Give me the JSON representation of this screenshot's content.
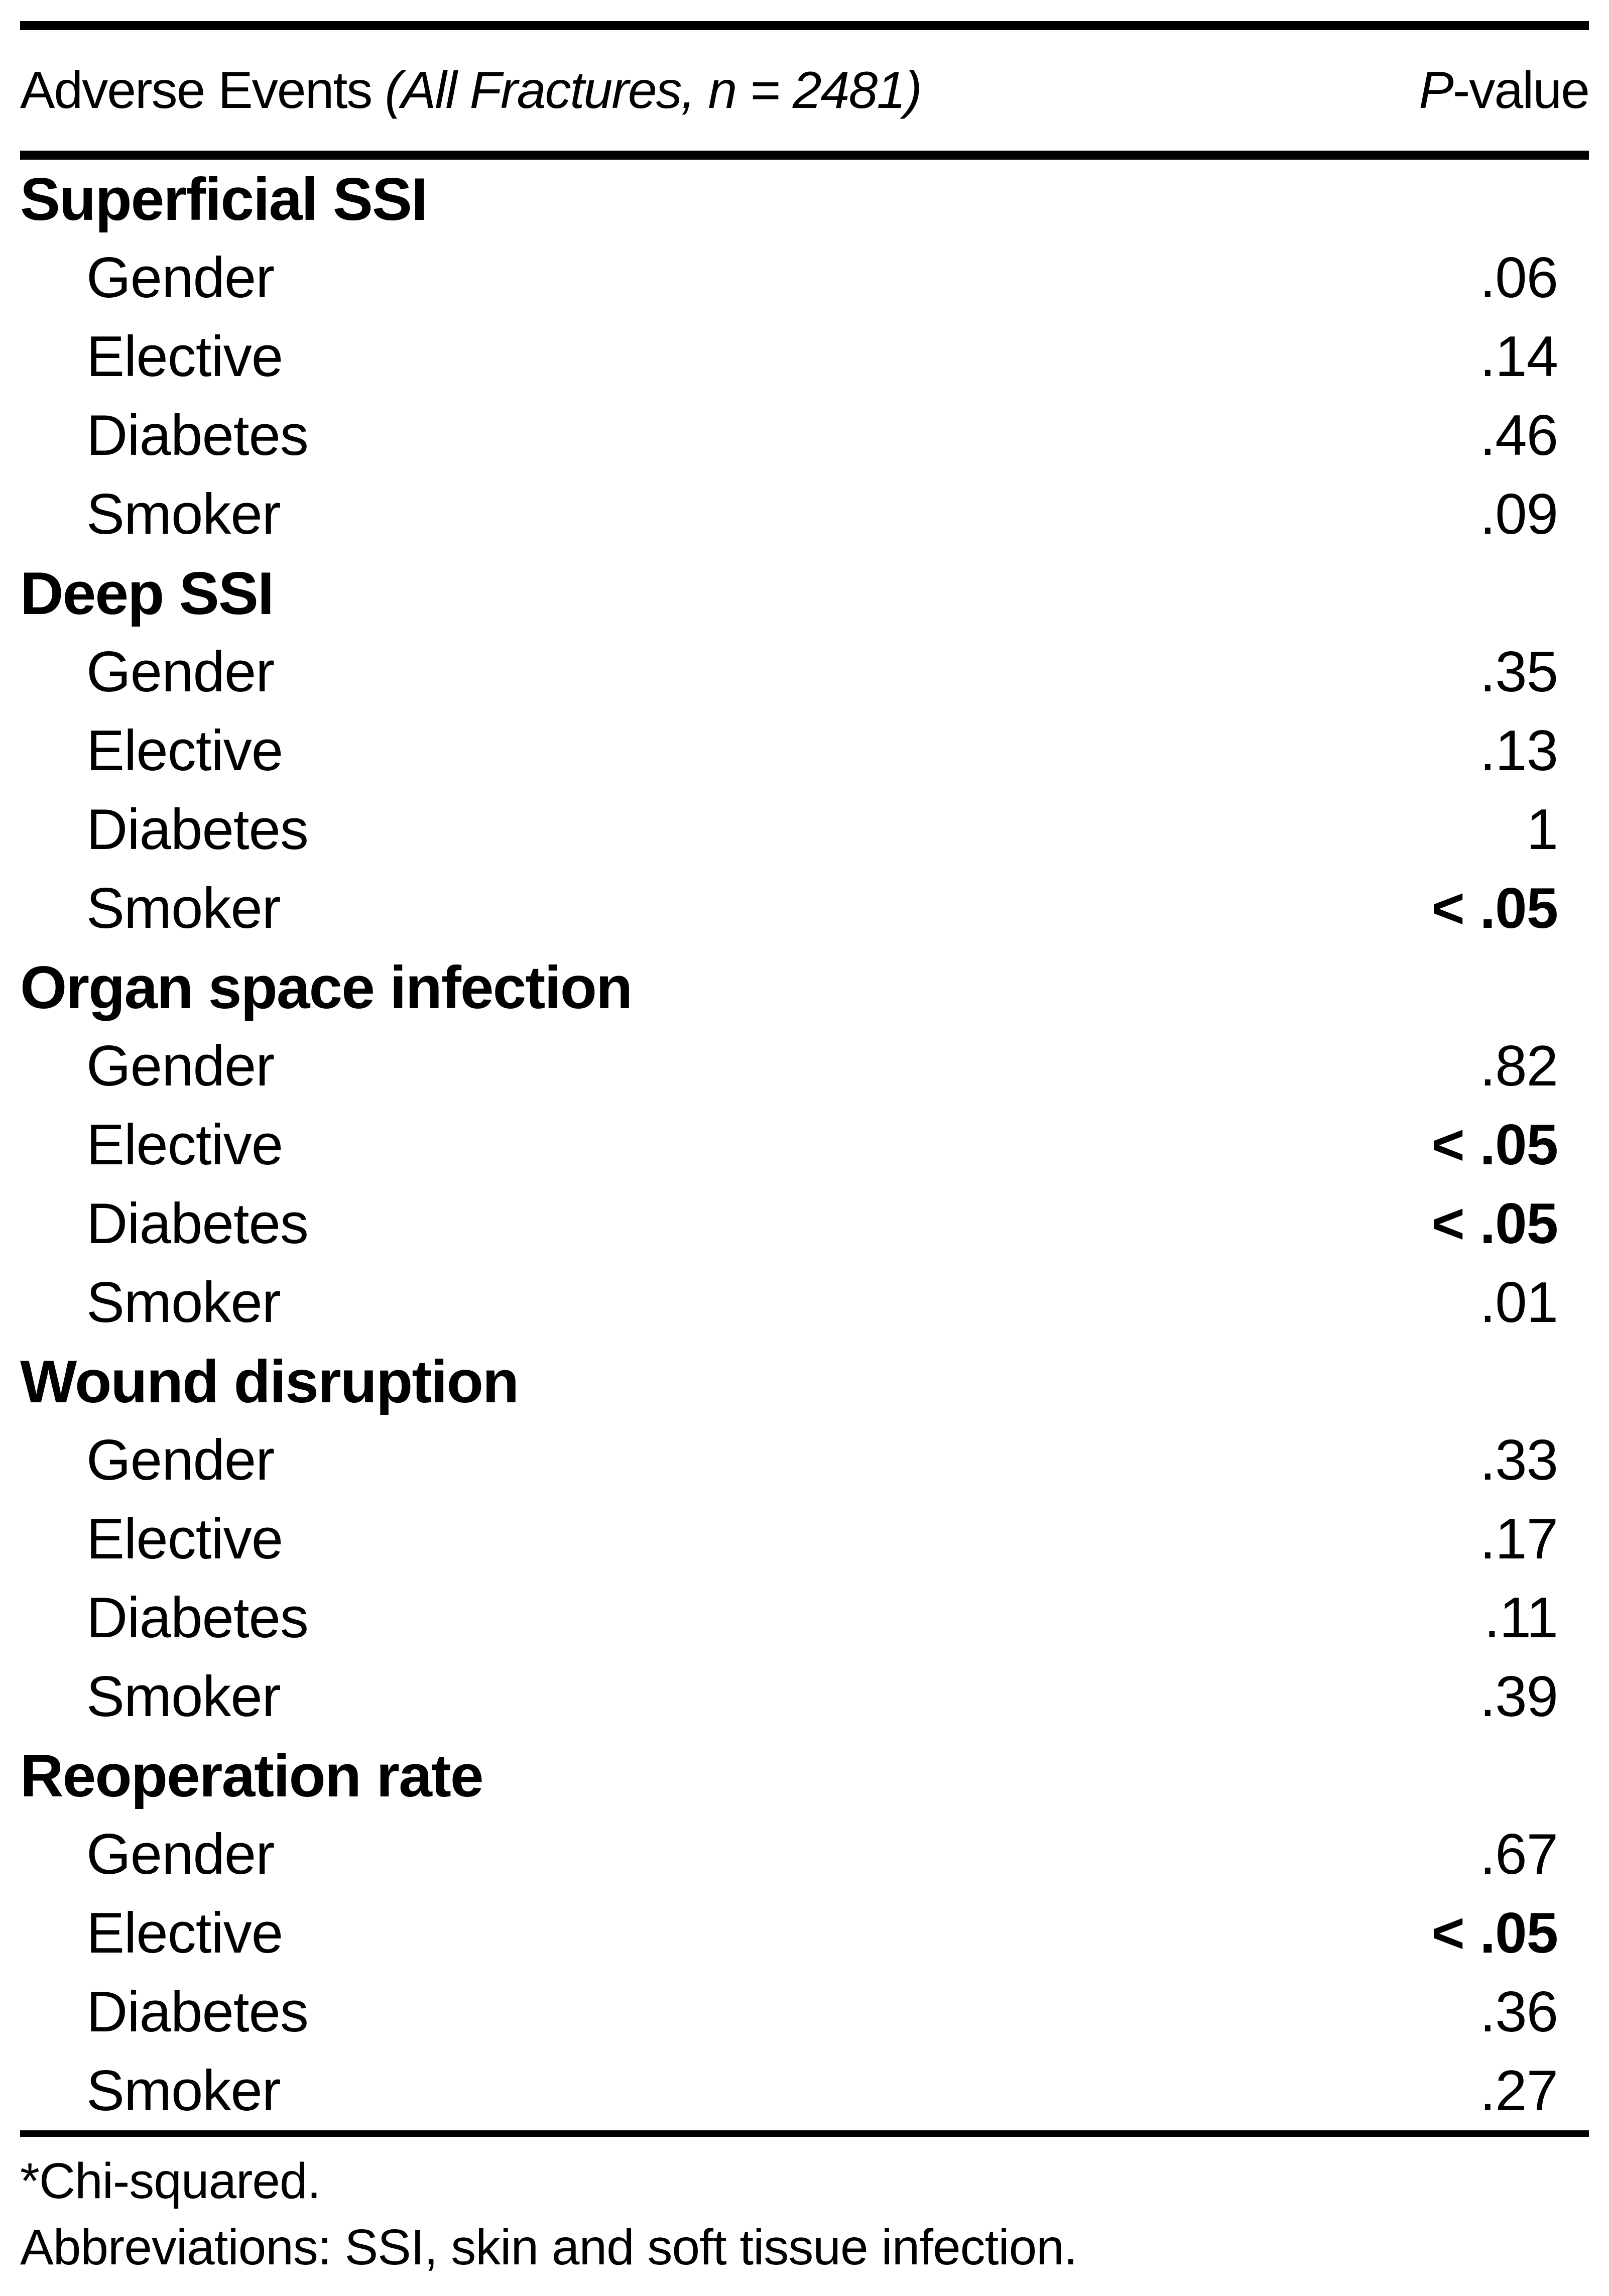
{
  "page": {
    "header": {
      "title_main": "Adverse Events",
      "title_paren": "(All Fractures, n = 2481)",
      "pcol_italic": "P",
      "pcol_rest": "-value"
    },
    "sections": [
      {
        "title": "Superficial SSI",
        "rows": [
          {
            "label": "Gender",
            "value": ".06",
            "bold": false
          },
          {
            "label": "Elective",
            "value": ".14",
            "bold": false
          },
          {
            "label": "Diabetes",
            "value": ".46",
            "bold": false
          },
          {
            "label": "Smoker",
            "value": ".09",
            "bold": false
          }
        ]
      },
      {
        "title": "Deep SSI",
        "rows": [
          {
            "label": "Gender",
            "value": ".35",
            "bold": false
          },
          {
            "label": "Elective",
            "value": ".13",
            "bold": false
          },
          {
            "label": "Diabetes",
            "value": "1",
            "bold": false
          },
          {
            "label": "Smoker",
            "value": "< .05",
            "bold": true
          }
        ]
      },
      {
        "title": "Organ space infection",
        "rows": [
          {
            "label": "Gender",
            "value": ".82",
            "bold": false
          },
          {
            "label": "Elective",
            "value": "< .05",
            "bold": true
          },
          {
            "label": "Diabetes",
            "value": "< .05",
            "bold": true
          },
          {
            "label": "Smoker",
            "value": ".01",
            "bold": false
          }
        ]
      },
      {
        "title": "Wound disruption",
        "rows": [
          {
            "label": "Gender",
            "value": ".33",
            "bold": false
          },
          {
            "label": "Elective",
            "value": ".17",
            "bold": false
          },
          {
            "label": "Diabetes",
            "value": ".11",
            "bold": false
          },
          {
            "label": "Smoker",
            "value": ".39",
            "bold": false
          }
        ]
      },
      {
        "title": "Reoperation rate",
        "rows": [
          {
            "label": "Gender",
            "value": ".67",
            "bold": false
          },
          {
            "label": "Elective",
            "value": "< .05",
            "bold": true
          },
          {
            "label": "Diabetes",
            "value": ".36",
            "bold": false
          },
          {
            "label": "Smoker",
            "value": ".27",
            "bold": false
          }
        ]
      }
    ],
    "footnotes": [
      "*Chi-squared.",
      "Abbreviations: SSI, skin and soft tissue infection."
    ]
  }
}
